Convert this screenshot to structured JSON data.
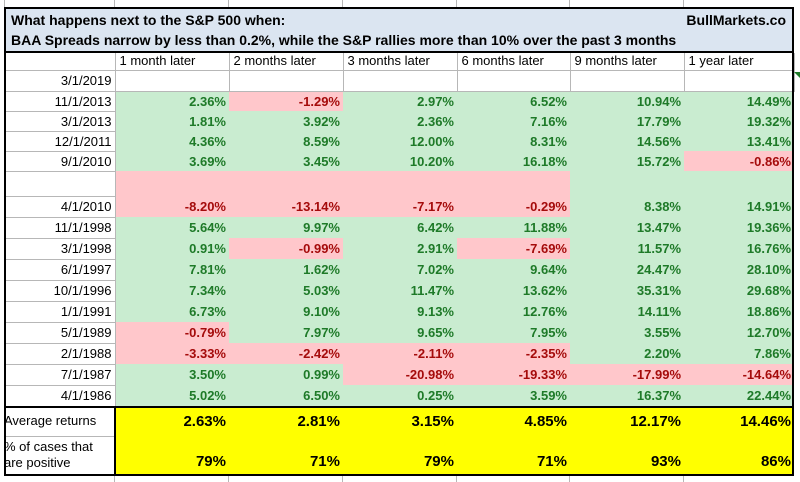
{
  "header": {
    "title_line1": "What happens next to the S&P 500 when:",
    "brand": "BullMarkets.co",
    "title_line2": "BAA Spreads narrow by less than 0.2%, while the S&P rallies more than 10% over the past 3 months"
  },
  "table": {
    "column_headers": [
      "1 month later",
      "2 months later",
      "3 months later",
      "6 months later",
      "9 months later",
      "1 year later"
    ],
    "rows": [
      {
        "date": "3/1/2019",
        "values": [
          "",
          "",
          "",
          "",
          "",
          ""
        ]
      },
      {
        "date": "11/1/2013",
        "values": [
          "2.36%",
          "-1.29%",
          "2.97%",
          "6.52%",
          "10.94%",
          "14.49%"
        ]
      },
      {
        "date": "3/1/2013",
        "values": [
          "1.81%",
          "3.92%",
          "2.36%",
          "7.16%",
          "17.79%",
          "19.32%"
        ]
      },
      {
        "date": "12/1/2011",
        "values": [
          "4.36%",
          "8.59%",
          "12.00%",
          "8.31%",
          "14.56%",
          "13.41%"
        ]
      },
      {
        "date": "9/1/2010",
        "values": [
          "3.69%",
          "3.45%",
          "10.20%",
          "16.18%",
          "15.72%",
          "-0.86%"
        ]
      },
      {
        "date": "",
        "blank": true,
        "fills": [
          "neg",
          "neg",
          "neg",
          "neg",
          "pos",
          "pos"
        ]
      },
      {
        "date": "4/1/2010",
        "values": [
          "-8.20%",
          "-13.14%",
          "-7.17%",
          "-0.29%",
          "8.38%",
          "14.91%"
        ]
      },
      {
        "date": "11/1/1998",
        "values": [
          "5.64%",
          "9.97%",
          "6.42%",
          "11.88%",
          "13.47%",
          "19.36%"
        ]
      },
      {
        "date": "3/1/1998",
        "values": [
          "0.91%",
          "-0.99%",
          "2.91%",
          "-7.69%",
          "11.57%",
          "16.76%"
        ]
      },
      {
        "date": "6/1/1997",
        "values": [
          "7.81%",
          "1.62%",
          "7.02%",
          "9.64%",
          "24.47%",
          "28.10%"
        ]
      },
      {
        "date": "10/1/1996",
        "values": [
          "7.34%",
          "5.03%",
          "11.47%",
          "13.62%",
          "35.31%",
          "29.68%"
        ]
      },
      {
        "date": "1/1/1991",
        "values": [
          "6.73%",
          "9.10%",
          "9.13%",
          "12.76%",
          "14.11%",
          "18.86%"
        ]
      },
      {
        "date": "5/1/1989",
        "values": [
          "-0.79%",
          "7.97%",
          "9.65%",
          "7.95%",
          "3.55%",
          "12.70%"
        ]
      },
      {
        "date": "2/1/1988",
        "values": [
          "-3.33%",
          "-2.42%",
          "-2.11%",
          "-2.35%",
          "2.20%",
          "7.86%"
        ]
      },
      {
        "date": "7/1/1987",
        "values": [
          "3.50%",
          "0.99%",
          "-20.98%",
          "-19.33%",
          "-17.99%",
          "-14.64%"
        ]
      },
      {
        "date": "4/1/1986",
        "values": [
          "5.02%",
          "6.50%",
          "0.25%",
          "3.59%",
          "16.37%",
          "22.44%"
        ]
      }
    ],
    "summary": {
      "average_label": "Average returns",
      "average_values": [
        "2.63%",
        "2.81%",
        "3.15%",
        "4.85%",
        "12.17%",
        "14.46%"
      ],
      "positive_label_line1": "% of cases that",
      "positive_label_line2": "are positive",
      "positive_values": [
        "79%",
        "71%",
        "79%",
        "71%",
        "93%",
        "86%"
      ]
    }
  },
  "colors": {
    "positive_bg": "#c9ecd0",
    "positive_text": "#1e7a28",
    "negative_bg": "#ffc7cb",
    "negative_text": "#a50b0b",
    "summary_bg": "#ffff00",
    "title_bg": "#dbe5f1",
    "grid": "#b7b7b7",
    "flag": "#1e7a28"
  }
}
